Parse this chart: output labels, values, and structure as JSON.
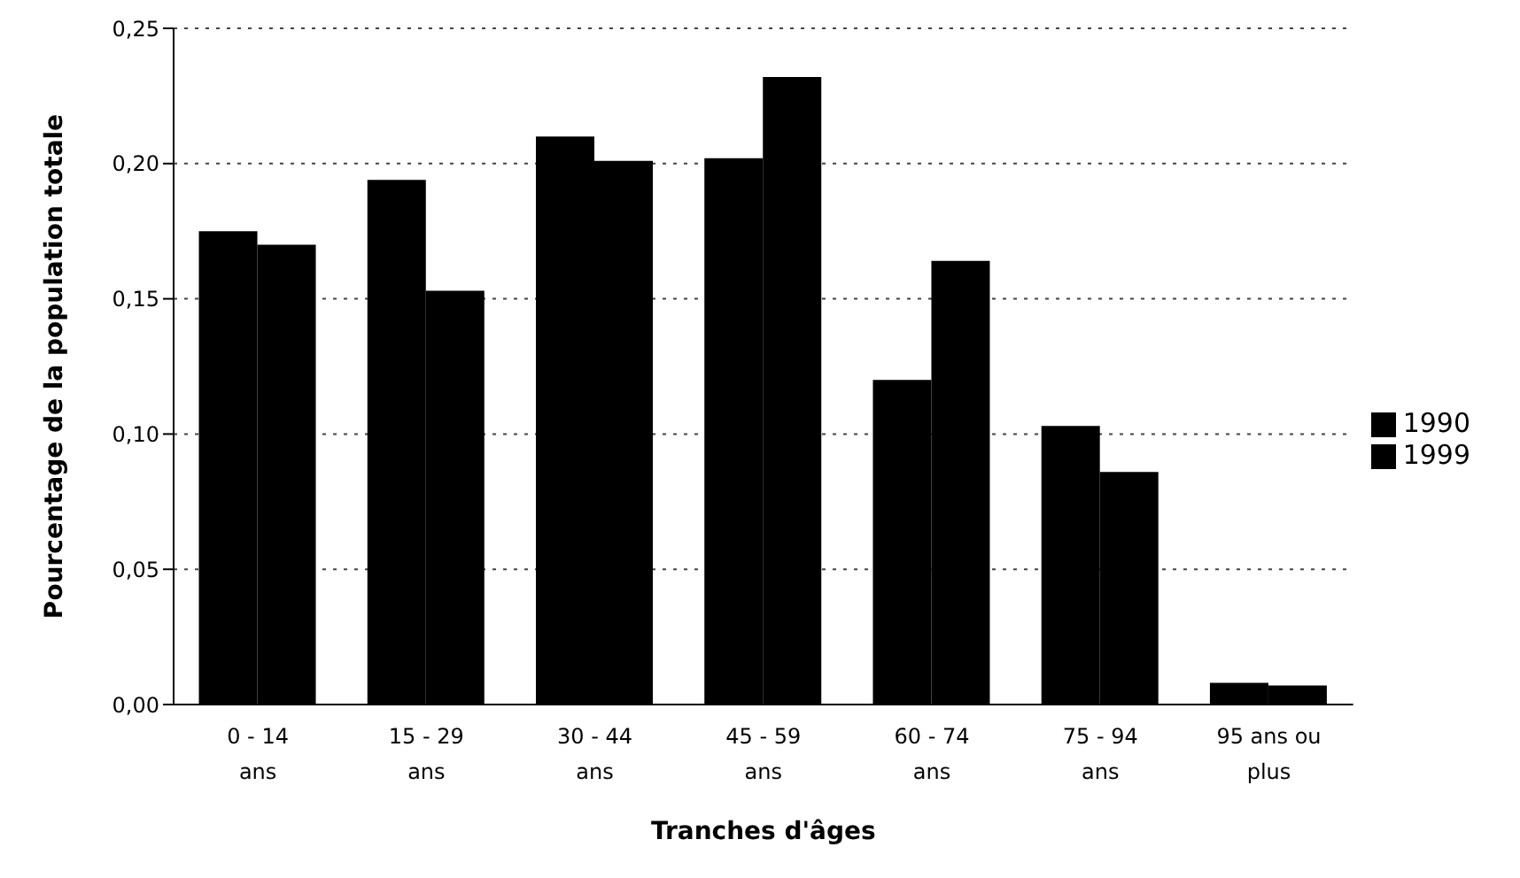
{
  "chart_data": {
    "type": "bar",
    "xlabel": "Tranches d'âges",
    "ylabel": "Pourcentage de la population totale",
    "categories": [
      "0 - 14 ans",
      "15 - 29 ans",
      "30 - 44 ans",
      "45 - 59 ans",
      "60 - 74 ans",
      "75 - 94 ans",
      "95 ans ou plus"
    ],
    "series": [
      {
        "name": "1990",
        "color": "#000000",
        "values": [
          0.175,
          0.194,
          0.21,
          0.202,
          0.12,
          0.103,
          0.008
        ]
      },
      {
        "name": "1999",
        "color": "#000000",
        "values": [
          0.17,
          0.153,
          0.201,
          0.232,
          0.164,
          0.086,
          0.007
        ]
      }
    ],
    "ylim": [
      0,
      0.25
    ],
    "yticks": [
      {
        "value": 0,
        "label": "0,00"
      },
      {
        "value": 0.05,
        "label": "0,05"
      },
      {
        "value": 0.1,
        "label": "0,10"
      },
      {
        "value": 0.15,
        "label": "0,15"
      },
      {
        "value": 0.2,
        "label": "0,20"
      },
      {
        "value": 0.25,
        "label": "0,25"
      }
    ],
    "grid": "y",
    "legend": "right"
  }
}
